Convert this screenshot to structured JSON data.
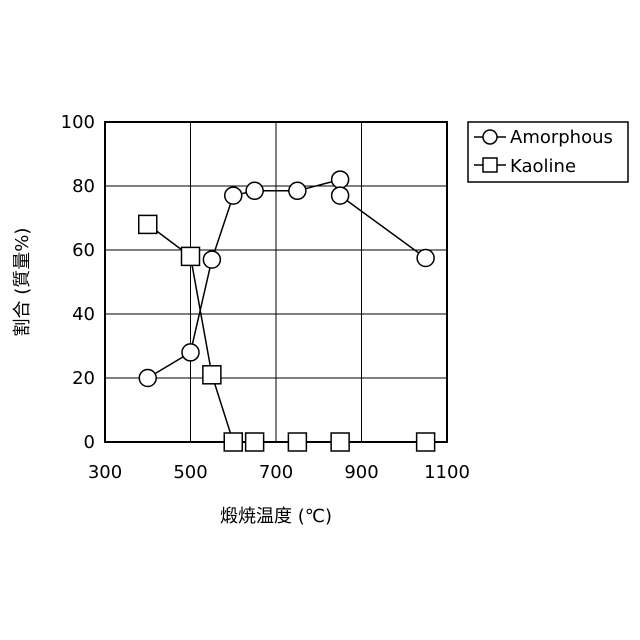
{
  "chart_data": {
    "type": "line",
    "title": "",
    "xlabel": "煅焼温度 (℃)",
    "ylabel": "割合 (質量%)",
    "xlim": [
      300,
      1100
    ],
    "ylim": [
      0,
      100
    ],
    "xticks": [
      300,
      500,
      700,
      900,
      1100
    ],
    "yticks": [
      0,
      20,
      40,
      60,
      80,
      100
    ],
    "grid": true,
    "legend_position": "top-right outside",
    "series": [
      {
        "name": "Amorphous",
        "marker": "circle",
        "points": [
          {
            "x": 400,
            "y": 20
          },
          {
            "x": 500,
            "y": 28
          },
          {
            "x": 550,
            "y": 57
          },
          {
            "x": 600,
            "y": 77
          },
          {
            "x": 650,
            "y": 78.5
          },
          {
            "x": 750,
            "y": 78.5
          },
          {
            "x": 850,
            "y": 82
          },
          {
            "x": 850,
            "y": 77
          },
          {
            "x": 1050,
            "y": 57.5
          }
        ]
      },
      {
        "name": "Kaoline",
        "marker": "square",
        "points": [
          {
            "x": 400,
            "y": 68
          },
          {
            "x": 500,
            "y": 58
          },
          {
            "x": 550,
            "y": 21
          },
          {
            "x": 600,
            "y": 0
          },
          {
            "x": 650,
            "y": 0
          },
          {
            "x": 750,
            "y": 0
          },
          {
            "x": 850,
            "y": 0
          },
          {
            "x": 1050,
            "y": 0
          }
        ]
      }
    ]
  }
}
